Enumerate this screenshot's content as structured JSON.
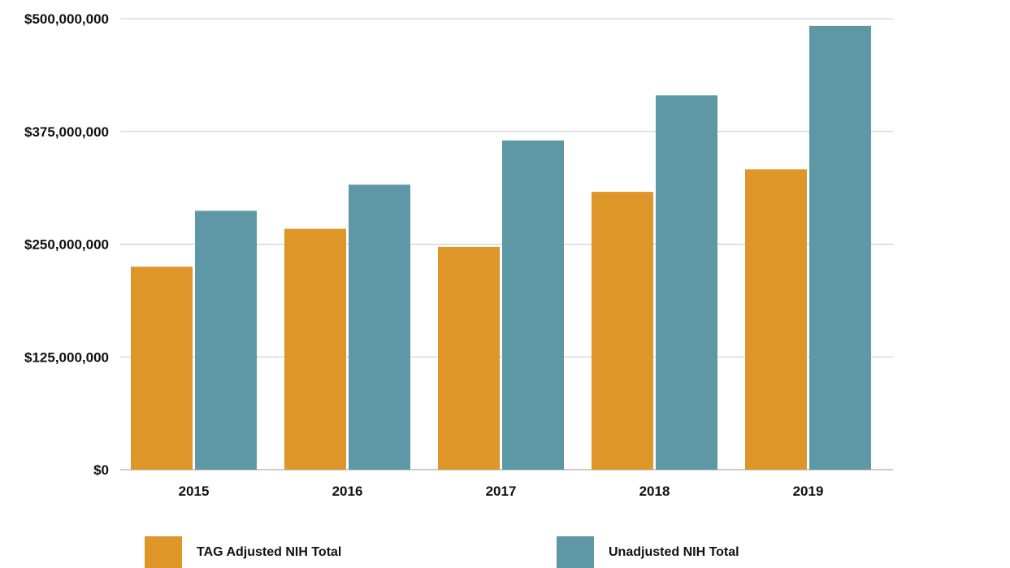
{
  "chart_data": {
    "type": "bar",
    "categories": [
      "2015",
      "2016",
      "2017",
      "2018",
      "2019"
    ],
    "series": [
      {
        "name": "TAG Adjusted NIH Total",
        "color": "#de9628",
        "values": [
          225000000,
          267000000,
          247000000,
          308000000,
          333000000
        ]
      },
      {
        "name": "Unadjusted NIH Total",
        "color": "#5e97a6",
        "values": [
          287000000,
          316000000,
          365000000,
          415000000,
          492000000
        ]
      }
    ],
    "y_ticks": [
      {
        "value": 0,
        "label": "$0"
      },
      {
        "value": 125000000,
        "label": "$125,000,000"
      },
      {
        "value": 250000000,
        "label": "$250,000,000"
      },
      {
        "value": 375000000,
        "label": "$375,000,000"
      },
      {
        "value": 500000000,
        "label": "$500,000,000"
      }
    ],
    "ylim": [
      0,
      500000000
    ],
    "grid": true,
    "legend_position": "bottom",
    "title": "",
    "xlabel": "",
    "ylabel": ""
  }
}
